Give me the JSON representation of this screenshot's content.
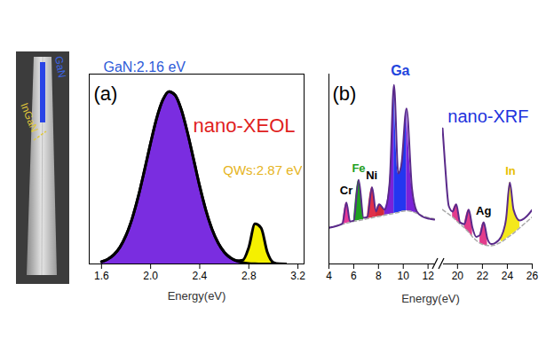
{
  "sem_image": {
    "labels": [
      "GaN",
      "InGaN"
    ]
  },
  "chart_data": [
    {
      "type": "area",
      "panel_label": "(a)",
      "title": "nano-XEOL",
      "x_label": "Energy(eV)",
      "stacked": true,
      "tick_labels": "x",
      "xlim": [
        1.5,
        3.25
      ],
      "xticks": [
        1.6,
        {
          "value": 2,
          "label": "2.0"
        },
        2.4,
        2.8,
        3.2
      ],
      "ylim": [
        0,
        1.1
      ],
      "x": [
        1.6,
        1.65,
        1.7,
        1.75,
        1.8,
        1.85,
        1.9,
        1.95,
        2.0,
        2.05,
        2.1,
        2.15,
        2.2,
        2.25,
        2.3,
        2.35,
        2.4,
        2.45,
        2.5,
        2.55,
        2.6,
        2.65,
        2.7,
        2.75,
        2.8,
        2.85,
        2.9,
        2.95,
        3.0,
        3.05,
        3.1
      ],
      "series": [
        {
          "name": "GaN:2.16 eV",
          "color": "#7a2de0",
          "values": [
            0.013,
            0.027,
            0.053,
            0.097,
            0.166,
            0.264,
            0.392,
            0.543,
            0.701,
            0.846,
            0.951,
            0.999,
            0.978,
            0.894,
            0.762,
            0.607,
            0.45,
            0.312,
            0.202,
            0.122,
            0.068,
            0.036,
            0.018,
            0.008,
            0.003,
            0.001,
            0,
            0,
            0,
            0,
            0
          ]
        },
        {
          "name": "QWs:2.87 eV",
          "color": "#f5f000",
          "values": [
            0,
            0,
            0,
            0,
            0,
            0,
            0,
            0,
            0,
            0,
            0,
            0,
            0,
            0,
            0,
            0,
            0,
            0,
            0,
            0,
            0,
            0,
            0.001,
            0.014,
            0.094,
            0.231,
            0.209,
            0.07,
            0.009,
            0.001,
            0
          ]
        }
      ]
    },
    {
      "type": "line",
      "panel_label": "(b)",
      "title": "nano-XRF",
      "x_label": "Energy(eV)",
      "tick_labels": "x",
      "ylim": [
        0,
        10.5
      ],
      "segments": [
        {
          "xlim": [
            4,
            12.6
          ],
          "xticks": [
            4,
            6,
            8,
            10,
            12
          ],
          "x": [
            4.0,
            4.6,
            5.1,
            5.41,
            5.7,
            6.0,
            6.4,
            6.8,
            7.1,
            7.48,
            7.8,
            8.05,
            8.5,
            8.9,
            9.25,
            9.6,
            9.85,
            10.26,
            10.7,
            11.1,
            11.6,
            12.1,
            12.5
          ],
          "values": [
            2.0,
            2.1,
            2.25,
            3.4,
            2.35,
            2.4,
            4.65,
            2.55,
            2.6,
            4.25,
            2.9,
            3.3,
            3.0,
            4.5,
            9.9,
            5.0,
            5.5,
            8.6,
            4.2,
            2.9,
            2.6,
            2.5,
            2.45
          ],
          "background": [
            2.0,
            2.1,
            2.2,
            2.25,
            2.3,
            2.35,
            2.4,
            2.45,
            2.5,
            2.55,
            2.6,
            2.62,
            2.7,
            2.75,
            2.8,
            2.85,
            2.9,
            2.95,
            2.9,
            2.8,
            2.65,
            2.55,
            2.5
          ],
          "fills": [
            {
              "range": [
                5.1,
                5.7
              ],
              "color": "#e8389a",
              "label": "Cr",
              "label_color": "#000000"
            },
            {
              "range": [
                6.0,
                6.8
              ],
              "color": "#1fa01f",
              "label": "Fe",
              "label_color": "#1e9e1e"
            },
            {
              "range": [
                7.1,
                7.8
              ],
              "color": "#e0304a",
              "label": "Ni",
              "label_color": "#000000"
            },
            {
              "range": [
                7.8,
                8.5
              ],
              "color": "#d42a3a"
            },
            {
              "range": [
                8.5,
                9.25
              ],
              "color": "#7b22d8"
            },
            {
              "range": [
                9.25,
                10.26
              ],
              "color": "#2436f0",
              "label": "Ga",
              "label_color": "#2244dd"
            },
            {
              "range": [
                10.26,
                11.1
              ],
              "color": "#7b22d8"
            }
          ]
        },
        {
          "xlim": [
            18.8,
            26
          ],
          "xticks": [
            20,
            22,
            24,
            26
          ],
          "x": [
            18.8,
            19.0,
            19.3,
            19.6,
            19.9,
            20.2,
            20.55,
            20.9,
            21.2,
            21.5,
            21.8,
            22.1,
            22.4,
            22.7,
            23.0,
            23.5,
            23.9,
            24.2,
            24.5,
            25.0,
            25.5,
            26.0
          ],
          "values": [
            7.5,
            5.5,
            3.2,
            2.9,
            3.3,
            2.3,
            2.2,
            3.0,
            2.0,
            1.5,
            1.6,
            2.3,
            1.4,
            1.1,
            1.15,
            1.5,
            2.5,
            4.5,
            3.0,
            2.4,
            2.6,
            3.0
          ],
          "background": [
            3.0,
            2.9,
            2.75,
            2.6,
            2.4,
            2.2,
            2.0,
            1.75,
            1.5,
            1.3,
            1.15,
            1.05,
            1.02,
            1.0,
            1.05,
            1.2,
            1.4,
            1.55,
            1.7,
            2.0,
            2.3,
            2.6
          ],
          "fills": [
            {
              "range": [
                19.6,
                20.2
              ],
              "color": "#e33c8c"
            },
            {
              "range": [
                20.55,
                21.2
              ],
              "color": "#e33c8c"
            },
            {
              "range": [
                21.8,
                22.4
              ],
              "color": "#e33c8c",
              "label": "Ag",
              "label_color": "#000000"
            },
            {
              "range": [
                23.5,
                25.0
              ],
              "color": "#f4e81c",
              "label": "In",
              "label_color": "#e8c000"
            }
          ]
        }
      ]
    }
  ]
}
